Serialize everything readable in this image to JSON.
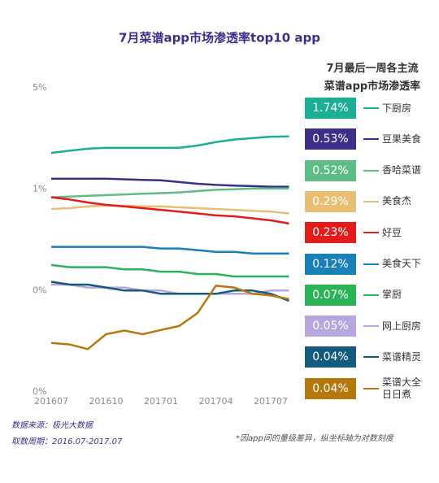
{
  "chart_data": {
    "type": "line",
    "title": "7月菜谱app市场渗透率top10 app",
    "legend_title": "7月最后一周各主流\n菜谱app市场渗透率",
    "x": [
      "201607",
      null,
      null,
      "201610",
      null,
      null,
      "201701",
      null,
      null,
      "201704",
      null,
      null,
      "201707",
      null
    ],
    "log_scale": true,
    "ylim": [
      0.04,
      5
    ],
    "yticks": [
      {
        "value": 0.04,
        "label": "0%"
      },
      {
        "value": 0.2,
        "label": "0%"
      },
      {
        "value": 1,
        "label": "1%"
      },
      {
        "value": 5,
        "label": "5%"
      }
    ],
    "legend_position": "right",
    "series": [
      {
        "name": "下厨房",
        "legend_value": "1.74%",
        "color": "#1bae93",
        "values": [
          1.78,
          1.84,
          1.9,
          1.93,
          1.93,
          1.93,
          1.93,
          1.93,
          2.0,
          2.11,
          2.2,
          2.25,
          2.3,
          2.31
        ]
      },
      {
        "name": "豆果美食",
        "legend_value": "0.53%",
        "color": "#3b2f8a",
        "values": [
          1.18,
          1.18,
          1.18,
          1.18,
          1.17,
          1.16,
          1.15,
          1.12,
          1.09,
          1.07,
          1.06,
          1.05,
          1.04,
          1.04
        ]
      },
      {
        "name": "香哈菜谱",
        "legend_value": "0.52%",
        "color": "#5ebd87",
        "values": [
          0.88,
          0.89,
          0.9,
          0.91,
          0.92,
          0.93,
          0.94,
          0.95,
          0.97,
          0.99,
          1.0,
          1.01,
          1.01,
          1.01
        ]
      },
      {
        "name": "美食杰",
        "legend_value": "0.29%",
        "color": "#e8be74",
        "values": [
          0.73,
          0.74,
          0.76,
          0.77,
          0.77,
          0.76,
          0.76,
          0.75,
          0.74,
          0.73,
          0.72,
          0.71,
          0.7,
          0.68
        ]
      },
      {
        "name": "好豆",
        "legend_value": "0.23%",
        "color": "#e31b1b",
        "values": [
          0.88,
          0.85,
          0.81,
          0.78,
          0.76,
          0.74,
          0.72,
          0.7,
          0.68,
          0.66,
          0.65,
          0.63,
          0.61,
          0.58
        ]
      },
      {
        "name": "美食天下",
        "legend_value": "0.12%",
        "color": "#1a80b8",
        "values": [
          0.4,
          0.4,
          0.4,
          0.4,
          0.4,
          0.4,
          0.39,
          0.39,
          0.38,
          0.37,
          0.37,
          0.36,
          0.36,
          0.36
        ]
      },
      {
        "name": "掌厨",
        "legend_value": "0.07%",
        "color": "#2bb35a",
        "values": [
          0.3,
          0.29,
          0.29,
          0.29,
          0.28,
          0.28,
          0.27,
          0.27,
          0.26,
          0.26,
          0.25,
          0.25,
          0.25,
          0.25
        ]
      },
      {
        "name": "网上厨房",
        "legend_value": "0.05%",
        "color": "#b6a6dd",
        "values": [
          0.22,
          0.22,
          0.21,
          0.21,
          0.21,
          0.2,
          0.2,
          0.19,
          0.19,
          0.19,
          0.19,
          0.19,
          0.2,
          0.2
        ]
      },
      {
        "name": "菜谱精灵",
        "legend_value": "0.04%",
        "color": "#145b7d",
        "values": [
          0.23,
          0.22,
          0.22,
          0.21,
          0.2,
          0.2,
          0.19,
          0.19,
          0.19,
          0.19,
          0.2,
          0.2,
          0.19,
          0.17
        ]
      },
      {
        "name": "菜谱大全\n日日煮",
        "legend_value": "0.04%",
        "color": "#b5780c",
        "values": [
          0.087,
          0.085,
          0.079,
          0.1,
          0.106,
          0.1,
          0.107,
          0.114,
          0.14,
          0.216,
          0.21,
          0.19,
          0.185,
          0.175
        ]
      }
    ],
    "source": "数据来源：极光大数据",
    "period": "取数周期：2016.07-2017.07",
    "note": "*因app间的量级差异，纵坐标轴为对数刻度"
  }
}
